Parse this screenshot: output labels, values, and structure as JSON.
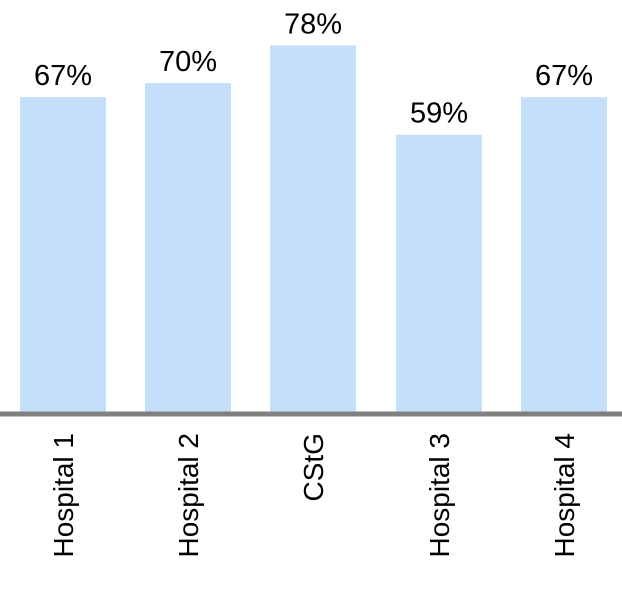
{
  "chart_data": {
    "type": "bar",
    "categories": [
      "Hospital 1",
      "Hospital 2",
      "CStG",
      "Hospital 3",
      "Hospital 4"
    ],
    "values": [
      67,
      70,
      78,
      59,
      67
    ],
    "data_labels": [
      "67%",
      "70%",
      "78%",
      "59%",
      "67%"
    ],
    "title": "",
    "xlabel": "",
    "ylabel": "",
    "ylim": [
      0,
      100
    ],
    "grid": false,
    "legend": "none",
    "bar_color": "#c5dffa",
    "axis_color": "#808080",
    "tick_label_orientation": "vertical"
  }
}
